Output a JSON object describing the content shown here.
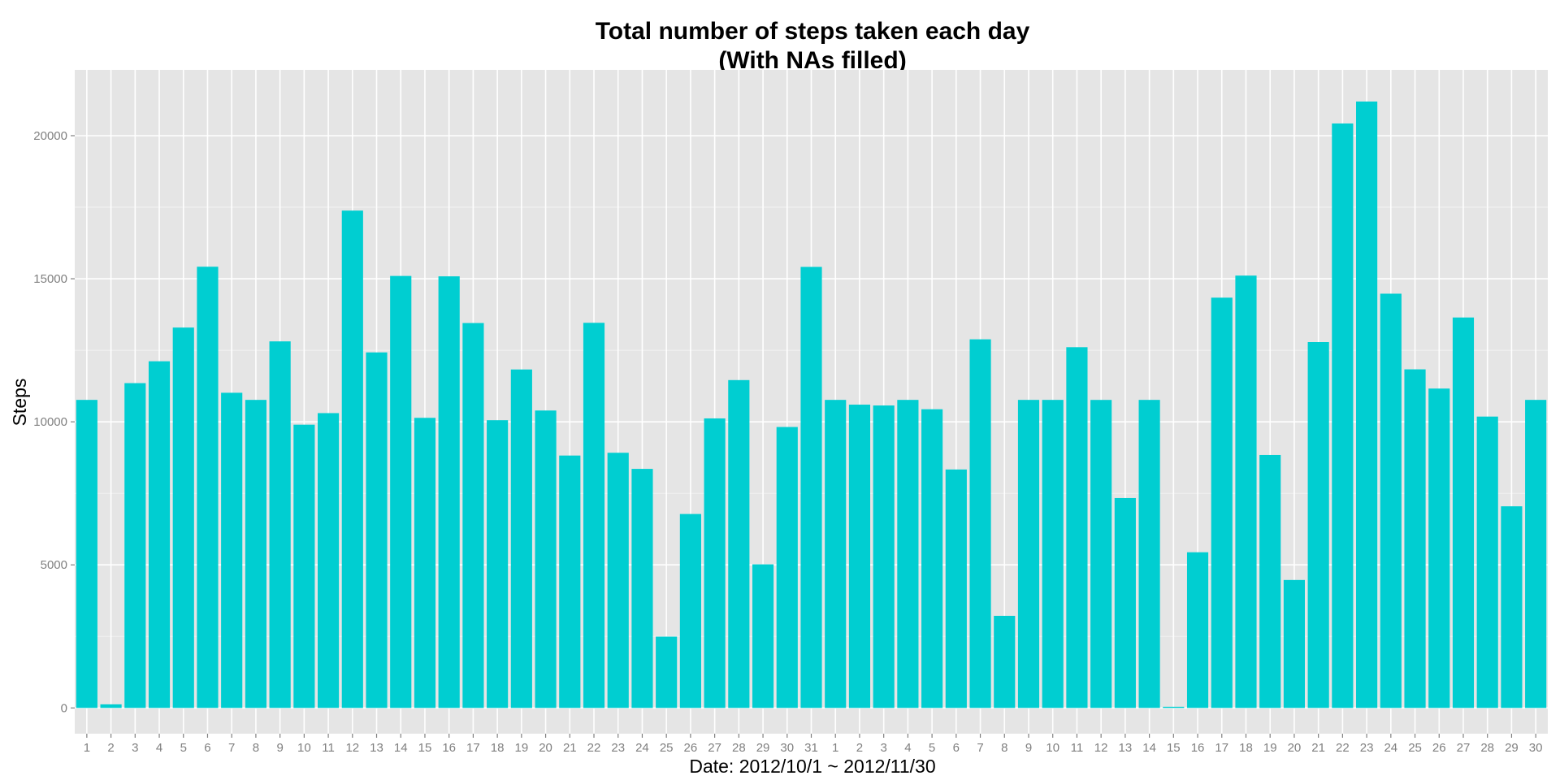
{
  "chart_data": {
    "type": "bar",
    "title_lines": [
      "Total number of steps taken each day",
      "(With NAs filled)"
    ],
    "xlabel": "Date: 2012/10/1 ~ 2012/11/30",
    "ylabel": "Steps",
    "ylim": [
      -900,
      22300
    ],
    "y_ticks": [
      {
        "value": 0,
        "label": "0"
      },
      {
        "value": 5000,
        "label": "5000"
      },
      {
        "value": 10000,
        "label": "10000"
      },
      {
        "value": 15000,
        "label": "15000"
      },
      {
        "value": 20000,
        "label": "20000"
      }
    ],
    "grid": true,
    "categories": [
      "1",
      "2",
      "3",
      "4",
      "5",
      "6",
      "7",
      "8",
      "9",
      "10",
      "11",
      "12",
      "13",
      "14",
      "15",
      "16",
      "17",
      "18",
      "19",
      "20",
      "21",
      "22",
      "23",
      "24",
      "25",
      "26",
      "27",
      "28",
      "29",
      "30",
      "31",
      "1",
      "2",
      "3",
      "4",
      "5",
      "6",
      "7",
      "8",
      "9",
      "10",
      "11",
      "12",
      "13",
      "14",
      "15",
      "16",
      "17",
      "18",
      "19",
      "20",
      "21",
      "22",
      "23",
      "24",
      "25",
      "26",
      "27",
      "28",
      "29",
      "30"
    ],
    "values": [
      10766,
      126,
      11352,
      12116,
      13294,
      15420,
      11015,
      10766,
      12811,
      9900,
      10304,
      17382,
      12426,
      15098,
      10139,
      15084,
      13452,
      10056,
      11829,
      10395,
      8821,
      13460,
      8918,
      8355,
      2492,
      6778,
      10119,
      11458,
      5018,
      9819,
      15414,
      10766,
      10600,
      10571,
      10766,
      10439,
      8334,
      12883,
      3219,
      10766,
      10766,
      12608,
      10765,
      7336,
      10766,
      41,
      5441,
      14339,
      15110,
      8841,
      4472,
      12787,
      20427,
      21194,
      14478,
      11834,
      11162,
      13646,
      10183,
      7047,
      10766
    ]
  },
  "colors": {
    "bar": "#00CED1",
    "panel": "#E5E5E5",
    "grid_major": "#FFFFFF",
    "grid_minor": "#F2F2F2",
    "tick_text": "#7F7F7F",
    "tick_mark": "#7F7F7F",
    "text": "#000000"
  }
}
